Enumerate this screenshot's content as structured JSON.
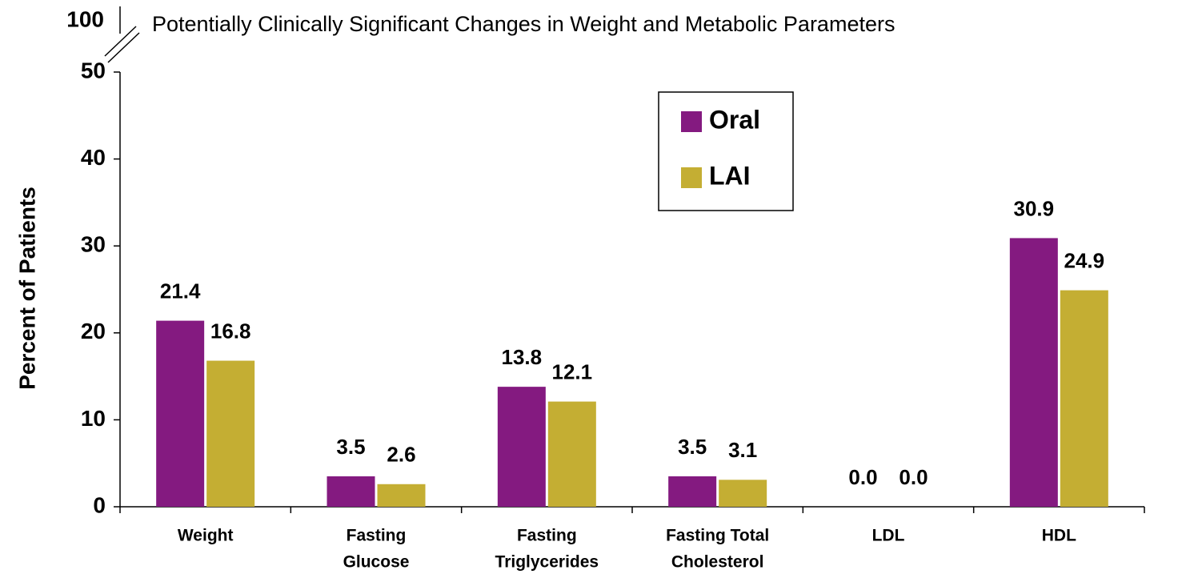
{
  "chart_data": {
    "type": "bar",
    "title": "Potentially Clinically Significant Changes in Weight and Metabolic Parameters",
    "y_label": "Percent of Patients",
    "categories": [
      [
        "Weight"
      ],
      [
        "Fasting",
        "Glucose"
      ],
      [
        "Fasting",
        "Triglycerides"
      ],
      [
        "Fasting Total",
        "Cholesterol"
      ],
      [
        "LDL"
      ],
      [
        "HDL"
      ]
    ],
    "series": [
      {
        "name": "Oral",
        "color": "#841a80",
        "values": [
          21.4,
          3.5,
          13.8,
          3.5,
          0,
          30.9
        ],
        "value_labels": [
          "21.4",
          "3.5",
          "13.8",
          "3.5",
          "0.0",
          "30.9"
        ]
      },
      {
        "name": "LAI",
        "color": "#c4ae33",
        "values": [
          16.8,
          2.6,
          12.1,
          3.1,
          0,
          24.9
        ],
        "value_labels": [
          "16.8",
          "2.6",
          "12.1",
          "3.1",
          "0.0",
          "24.9"
        ]
      }
    ],
    "ylim": [
      0,
      50
    ],
    "yticks": [
      0,
      10,
      20,
      30,
      40,
      50
    ],
    "y_break_tick": 100,
    "legend": "upper center"
  }
}
